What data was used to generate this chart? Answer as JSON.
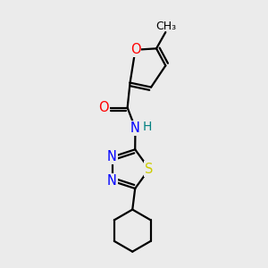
{
  "background_color": "#ebebeb",
  "bond_color": "#000000",
  "atom_colors": {
    "O": "#ff0000",
    "N": "#0000ff",
    "S": "#cccc00",
    "C": "#000000",
    "H": "#008080"
  },
  "font_size": 10.5,
  "lw": 1.6
}
